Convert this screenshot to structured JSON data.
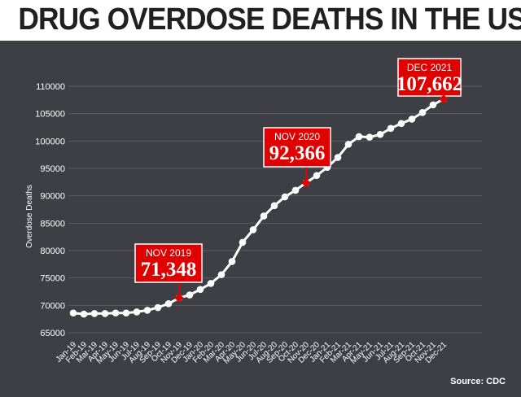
{
  "headline": "DRUG OVERDOSE DEATHS IN THE US",
  "source": "Source: CDC",
  "colors": {
    "panel": "#3e3e45",
    "line": "#ffffff",
    "callout": "#e00000"
  },
  "chart_data": {
    "type": "line",
    "ylabel": "Overdose Deaths",
    "ylim": [
      65000,
      110000
    ],
    "yticks": [
      65000,
      70000,
      75000,
      80000,
      85000,
      90000,
      95000,
      100000,
      105000,
      110000
    ],
    "grid": true,
    "categories": [
      "Jan-19",
      "Feb-19",
      "Mar-19",
      "Apr-19",
      "May-19",
      "Jun-19",
      "Jul-19",
      "Aug-19",
      "Sep-19",
      "Oct-19",
      "Nov-19",
      "Dec-19",
      "Jan-20",
      "Feb-20",
      "Mar-20",
      "Apr-20",
      "May-20",
      "Jun-20",
      "Jul-20",
      "Aug-20",
      "Sep-20",
      "Oct-20",
      "Nov-20",
      "Dec-20",
      "Jan-21",
      "Feb-21",
      "Mar-21",
      "Apr-21",
      "May-21",
      "Jun-21",
      "Jul-21",
      "Aug-21",
      "Sep-21",
      "Oct-21",
      "Nov-21",
      "Dec-21"
    ],
    "values": [
      68600,
      68400,
      68500,
      68500,
      68600,
      68600,
      68800,
      69100,
      69600,
      70300,
      71348,
      71900,
      72900,
      74000,
      75600,
      78000,
      81500,
      83800,
      86300,
      88200,
      89800,
      91000,
      92366,
      93700,
      95200,
      97000,
      99400,
      100800,
      100700,
      101200,
      102300,
      103200,
      104000,
      105200,
      106600,
      107662
    ],
    "annotations": [
      {
        "index": 10,
        "month": "NOV 2019",
        "value": "71,348"
      },
      {
        "index": 22,
        "month": "NOV 2020",
        "value": "92,366"
      },
      {
        "index": 35,
        "month": "DEC 2021",
        "value": "107,662"
      }
    ]
  }
}
